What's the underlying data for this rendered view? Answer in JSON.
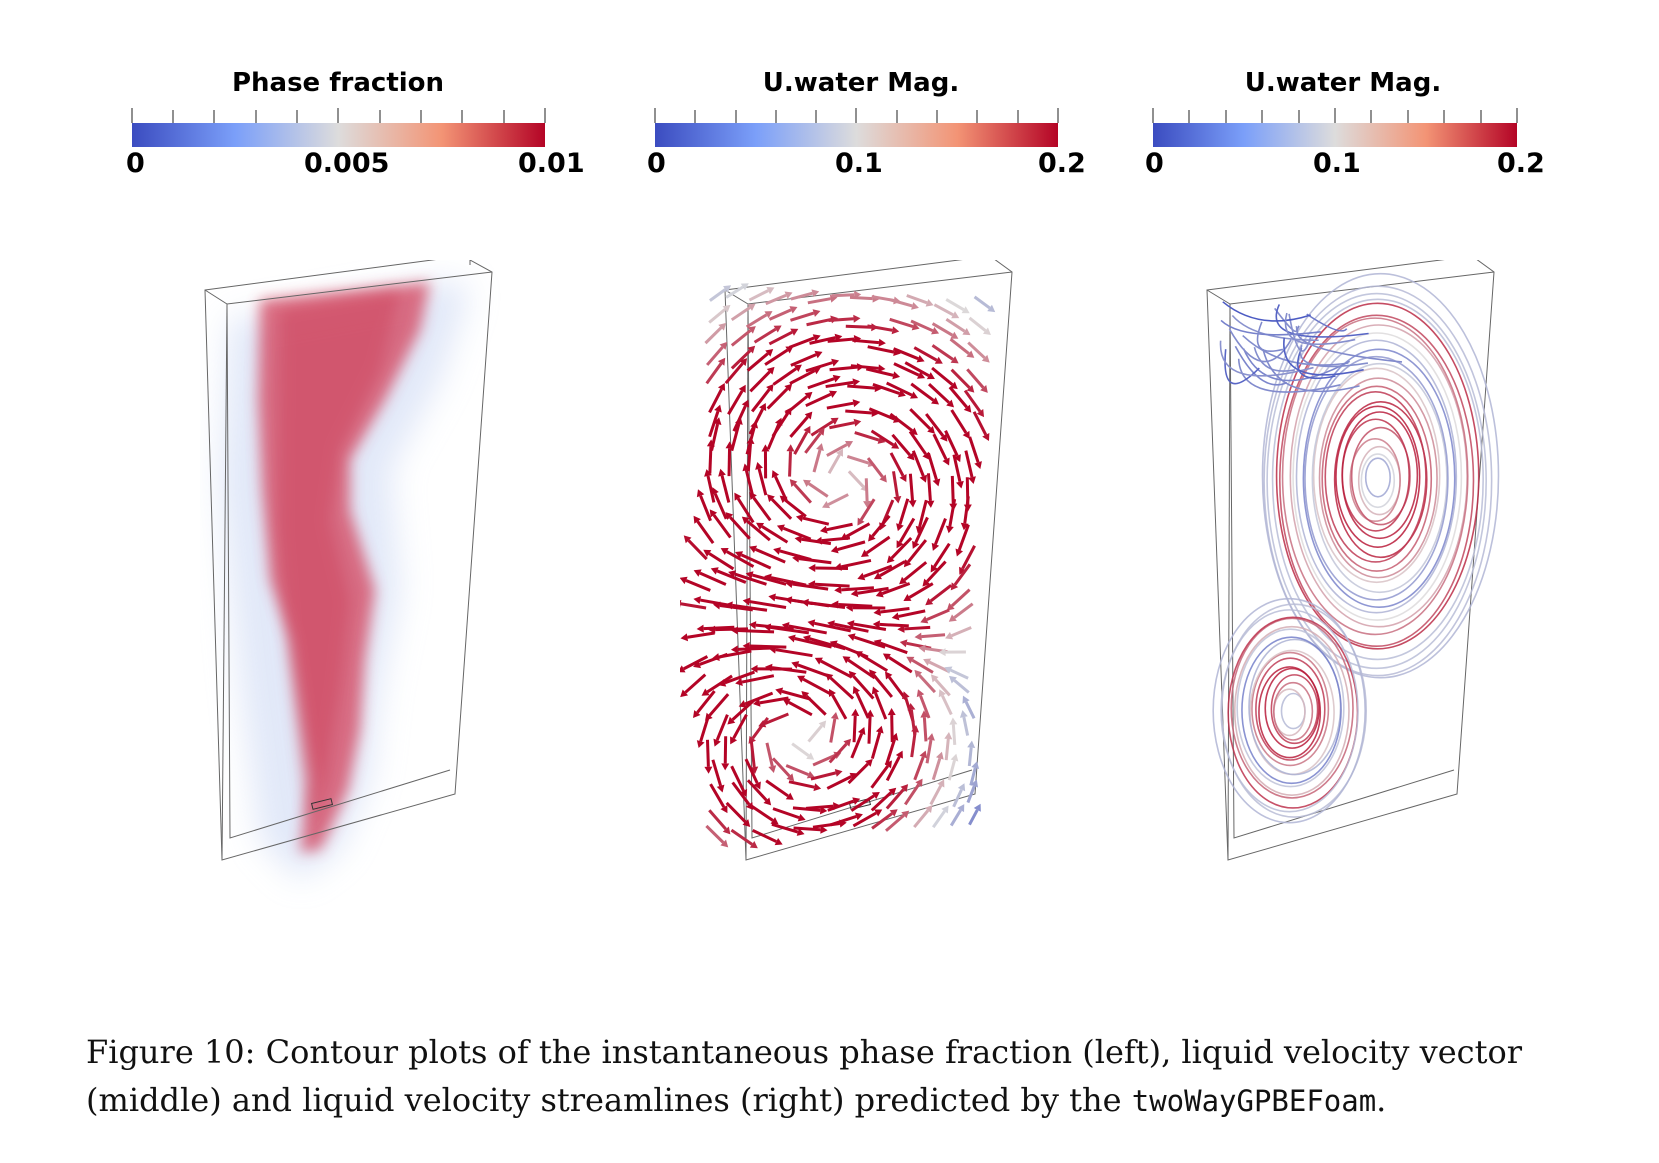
{
  "colorbars": [
    {
      "title": "Phase fraction",
      "labels": [
        "0",
        "0.005",
        "0.01"
      ]
    },
    {
      "title": "U.water Mag.",
      "labels": [
        "0",
        "0.1",
        "0.2"
      ]
    },
    {
      "title": "U.water Mag.",
      "labels": [
        "0",
        "0.1",
        "0.2"
      ]
    }
  ],
  "colormap": {
    "low": "#3b4cc0",
    "mid": "#dddddd",
    "high": "#b40426"
  },
  "caption": {
    "label": "Figure 10:",
    "text": "Contour plots of the instantaneous phase fraction (left), liquid velocity vector (middle) and liquid velocity streamlines (right) predicted by the",
    "code": "twoWayGPBEFoam",
    "end": "."
  }
}
